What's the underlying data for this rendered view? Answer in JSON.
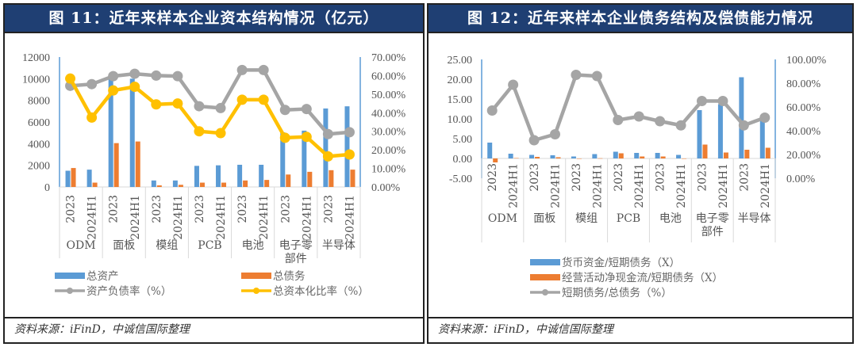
{
  "panels": [
    {
      "title": "图 11：近年来样本企业资本结构情况（亿元）",
      "source": "资料来源：iFinD，中诚信国际整理"
    },
    {
      "title": "图 12：近年来样本企业债务结构及偿债能力情况",
      "source": "资料来源：iFinD，中诚信国际整理"
    }
  ],
  "colors": {
    "blue": "#5b9bd5",
    "orange": "#ed7d31",
    "gray": "#a5a5a5",
    "yellow": "#ffc000",
    "header": "#1f3f73"
  },
  "chart_data": [
    {
      "type": "bar",
      "title": "图 11：近年来样本企业资本结构情况（亿元）",
      "groups": [
        "ODM",
        "面板",
        "模组",
        "PCB",
        "电池",
        "电子零部件",
        "半导体"
      ],
      "group_labels": [
        [
          "ODM"
        ],
        [
          "面板"
        ],
        [
          "模组"
        ],
        [
          "PCB"
        ],
        [
          "电池"
        ],
        [
          "电子零",
          "部件"
        ],
        [
          "半导体"
        ]
      ],
      "periods": [
        "2023",
        "2024H1"
      ],
      "ylim": [
        0,
        12000
      ],
      "yticks": [
        "0",
        "2000",
        "4000",
        "6000",
        "8000",
        "10000",
        "12000"
      ],
      "y2lim": [
        0,
        70
      ],
      "y2ticks": [
        "0.00%",
        "10.00%",
        "20.00%",
        "30.00%",
        "40.00%",
        "50.00%",
        "60.00%",
        "70.00%"
      ],
      "legend_position": "bottom",
      "series": [
        {
          "name": "总资产",
          "kind": "bar",
          "axis": "left",
          "color": "#5b9bd5",
          "values": [
            1500,
            1600,
            9950,
            10000,
            600,
            600,
            1950,
            2000,
            2050,
            2050,
            5050,
            5200,
            7250,
            7450
          ]
        },
        {
          "name": "总债务",
          "kind": "bar",
          "axis": "left",
          "color": "#ed7d31",
          "values": [
            1750,
            400,
            4050,
            4200,
            150,
            200,
            400,
            400,
            600,
            650,
            1150,
            1400,
            1550,
            1600
          ]
        },
        {
          "name": "资产负债率（%）",
          "kind": "line",
          "axis": "right",
          "color": "#a5a5a5",
          "values": [
            54.5,
            55.4,
            59.7,
            61.0,
            60.0,
            59.7,
            43.5,
            42.5,
            63.0,
            63.0,
            41.5,
            42.0,
            28.5,
            29.5
          ]
        },
        {
          "name": "总资本化比率（%）",
          "kind": "line",
          "axis": "right",
          "color": "#ffc000",
          "values": [
            58.4,
            37.4,
            52.0,
            54.0,
            44.5,
            45.0,
            30.0,
            29.0,
            47.0,
            47.0,
            26.5,
            27.0,
            16.5,
            17.5
          ]
        }
      ]
    },
    {
      "type": "bar",
      "title": "图 12：近年来样本企业债务结构及偿债能力情况",
      "groups": [
        "ODM",
        "面板",
        "模组",
        "PCB",
        "电池",
        "电子零部件",
        "半导体"
      ],
      "group_labels": [
        [
          "ODM"
        ],
        [
          "面板"
        ],
        [
          "模组"
        ],
        [
          "PCB"
        ],
        [
          "电池"
        ],
        [
          "电子零",
          "部件"
        ],
        [
          "半导体"
        ]
      ],
      "periods": [
        "2023",
        "2024H1"
      ],
      "ylim": [
        -5,
        25
      ],
      "yticks": [
        "-5.00",
        "0.00",
        "5.00",
        "10.00",
        "15.00",
        "20.00",
        "25.00"
      ],
      "y2lim": [
        0,
        100
      ],
      "y2ticks": [
        "0.00%",
        "20.00%",
        "40.00%",
        "60.00%",
        "80.00%",
        "100.00%"
      ],
      "legend_position": "bottom",
      "series": [
        {
          "name": "货币资金/短期债务（X）",
          "kind": "bar",
          "axis": "left",
          "color": "#5b9bd5",
          "values": [
            4.0,
            1.2,
            0.9,
            0.8,
            0.5,
            1.1,
            1.7,
            1.4,
            1.4,
            0.9,
            12.2,
            13.7,
            20.5,
            10.0
          ]
        },
        {
          "name": "经营活动净现金流/短期债务（X）",
          "kind": "bar",
          "axis": "left",
          "color": "#ed7d31",
          "values": [
            -1.0,
            0.1,
            0.4,
            0.3,
            0.0,
            0.05,
            1.3,
            0.5,
            0.5,
            0.0,
            3.5,
            1.5,
            2.2,
            2.7
          ]
        },
        {
          "name": "短期债务/总债务（%）",
          "kind": "line",
          "axis": "right",
          "color": "#a5a5a5",
          "values": [
            57,
            78.7,
            32,
            37,
            87,
            86,
            49,
            52,
            48,
            44.5,
            65,
            65,
            44.5,
            51
          ]
        }
      ]
    }
  ]
}
